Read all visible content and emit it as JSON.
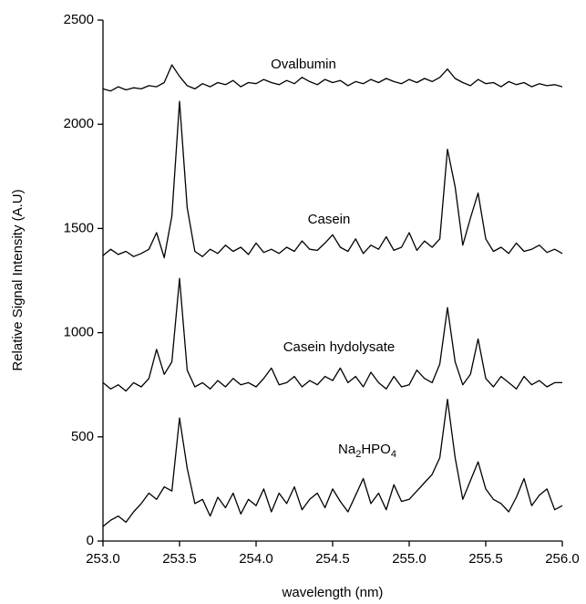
{
  "chart_data": {
    "type": "line",
    "xlabel": "wavelength (nm)",
    "ylabel": "Relative Signal Intensity (A.U)",
    "x": [
      253.0,
      253.05,
      253.1,
      253.15,
      253.2,
      253.25,
      253.3,
      253.35,
      253.4,
      253.45,
      253.5,
      253.55,
      253.6,
      253.65,
      253.7,
      253.75,
      253.8,
      253.85,
      253.9,
      253.95,
      254.0,
      254.05,
      254.1,
      254.15,
      254.2,
      254.25,
      254.3,
      254.35,
      254.4,
      254.45,
      254.5,
      254.55,
      254.6,
      254.65,
      254.7,
      254.75,
      254.8,
      254.85,
      254.9,
      254.95,
      255.0,
      255.05,
      255.1,
      255.15,
      255.2,
      255.25,
      255.3,
      255.35,
      255.4,
      255.45,
      255.5,
      255.55,
      255.6,
      255.65,
      255.7,
      255.75,
      255.8,
      255.85,
      255.9,
      255.95,
      256.0
    ],
    "series": [
      {
        "name": "Ovalbumin",
        "color": "#000000",
        "values": [
          2170,
          2160,
          2180,
          2165,
          2175,
          2170,
          2185,
          2180,
          2200,
          2285,
          2230,
          2185,
          2170,
          2195,
          2180,
          2200,
          2190,
          2210,
          2180,
          2200,
          2195,
          2215,
          2200,
          2190,
          2210,
          2195,
          2225,
          2205,
          2190,
          2215,
          2200,
          2210,
          2185,
          2205,
          2195,
          2215,
          2200,
          2220,
          2205,
          2195,
          2215,
          2200,
          2220,
          2205,
          2225,
          2265,
          2220,
          2200,
          2185,
          2215,
          2195,
          2200,
          2180,
          2205,
          2190,
          2200,
          2180,
          2195,
          2185,
          2190,
          2180
        ]
      },
      {
        "name": "Casein",
        "color": "#000000",
        "values": [
          1370,
          1400,
          1375,
          1390,
          1365,
          1380,
          1400,
          1480,
          1360,
          1560,
          2110,
          1600,
          1390,
          1365,
          1400,
          1380,
          1420,
          1390,
          1410,
          1375,
          1430,
          1385,
          1400,
          1380,
          1410,
          1390,
          1440,
          1400,
          1395,
          1430,
          1470,
          1410,
          1390,
          1450,
          1380,
          1420,
          1400,
          1460,
          1395,
          1410,
          1480,
          1395,
          1440,
          1410,
          1450,
          1880,
          1700,
          1420,
          1550,
          1670,
          1450,
          1390,
          1410,
          1380,
          1430,
          1390,
          1400,
          1420,
          1385,
          1400,
          1380
        ]
      },
      {
        "name": "Casein hydolysate",
        "color": "#000000",
        "values": [
          760,
          730,
          750,
          720,
          760,
          740,
          780,
          920,
          800,
          860,
          1260,
          820,
          740,
          760,
          730,
          770,
          740,
          780,
          750,
          760,
          740,
          780,
          830,
          750,
          760,
          790,
          740,
          770,
          750,
          790,
          770,
          830,
          760,
          790,
          740,
          810,
          760,
          730,
          790,
          740,
          750,
          820,
          780,
          760,
          850,
          1120,
          860,
          750,
          800,
          970,
          780,
          740,
          790,
          760,
          730,
          790,
          750,
          770,
          740,
          760,
          760
        ]
      },
      {
        "name": "Na2HPO4",
        "color": "#000000",
        "values": [
          70,
          100,
          120,
          90,
          140,
          180,
          230,
          200,
          260,
          240,
          590,
          350,
          180,
          200,
          120,
          210,
          160,
          230,
          130,
          200,
          170,
          250,
          140,
          230,
          180,
          260,
          150,
          200,
          230,
          160,
          250,
          190,
          140,
          220,
          300,
          180,
          230,
          150,
          270,
          190,
          200,
          240,
          280,
          320,
          400,
          680,
          400,
          200,
          290,
          380,
          250,
          200,
          180,
          140,
          210,
          300,
          170,
          220,
          250,
          150,
          170
        ]
      }
    ],
    "xlim": [
      253.0,
      256.0
    ],
    "xticks": [
      {
        "value": 253.0,
        "label": "253.0"
      },
      253.5,
      {
        "value": 254.0,
        "label": "254.0"
      },
      254.5,
      {
        "value": 255.0,
        "label": "255.0"
      },
      255.5,
      {
        "value": 256.0,
        "label": "256.0"
      }
    ],
    "ylim": [
      0,
      2500
    ],
    "yticks": [
      0,
      500,
      1000,
      1500,
      2000,
      2500
    ],
    "grid": false
  }
}
